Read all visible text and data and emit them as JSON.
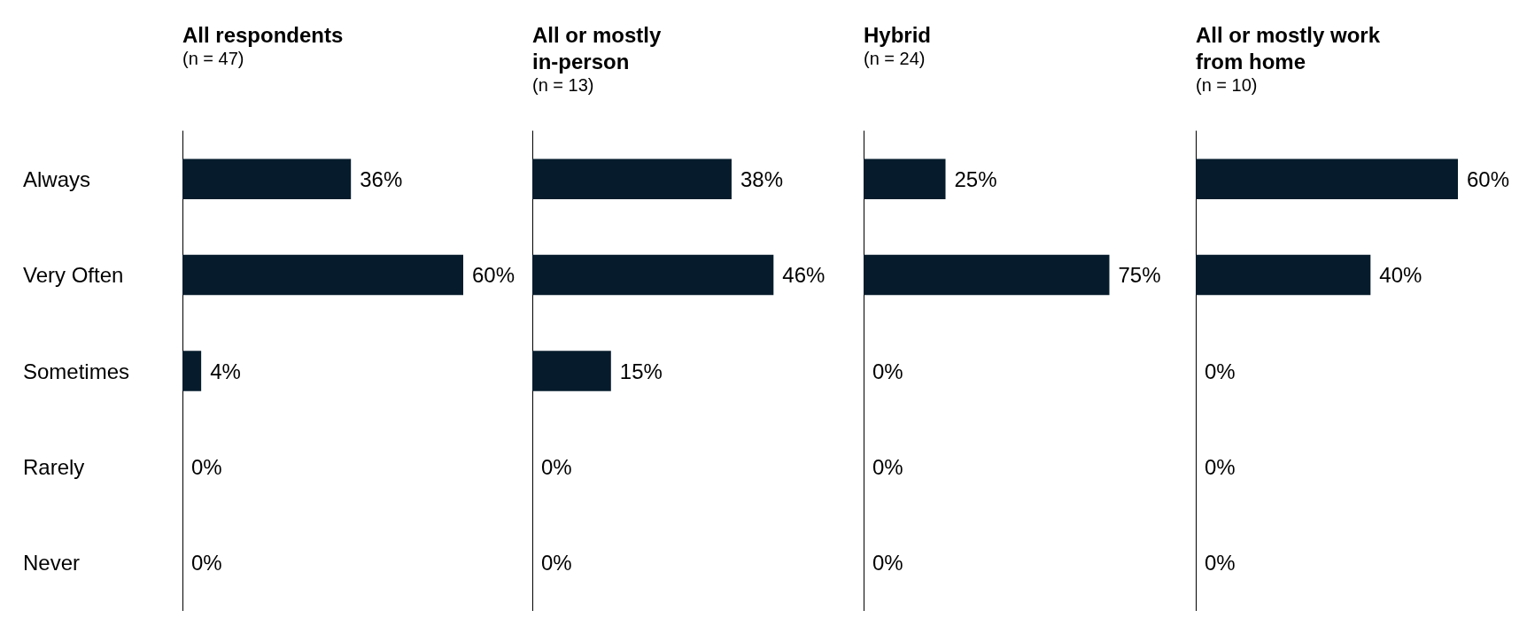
{
  "chart_data": [
    {
      "type": "bar",
      "orientation": "horizontal",
      "title": "All respondents",
      "subtitle": "(n = 47)",
      "categories": [
        "Always",
        "Very Often",
        "Sometimes",
        "Rarely",
        "Never"
      ],
      "series": [
        {
          "color": "#061c2c",
          "values": [
            36,
            60,
            4,
            0,
            0
          ],
          "value_labels": [
            "36%",
            "60%",
            "4%",
            "0%",
            "0%"
          ]
        }
      ],
      "tick_labels": "y"
    },
    {
      "type": "bar",
      "orientation": "horizontal",
      "title": "All or mostly in-person",
      "subtitle": "(n = 13)",
      "categories": [
        null,
        null,
        null,
        null,
        null
      ],
      "series": [
        {
          "color": "#061c2c",
          "values": [
            38,
            46,
            15,
            0,
            0
          ],
          "value_labels": [
            "38%",
            "46%",
            "15%",
            "0%",
            "0%"
          ]
        }
      ],
      "tick_labels": false
    },
    {
      "type": "bar",
      "orientation": "horizontal",
      "title": "Hybrid",
      "subtitle": "(n = 24)",
      "categories": [
        null,
        null,
        null,
        null,
        null
      ],
      "series": [
        {
          "color": "#061c2c",
          "values": [
            25,
            75,
            0,
            0,
            0
          ],
          "value_labels": [
            "25%",
            "75%",
            "0%",
            "0%",
            "0%"
          ]
        }
      ],
      "tick_labels": false
    },
    {
      "type": "bar",
      "orientation": "horizontal",
      "title": "All or mostly work from home",
      "subtitle": "(n = 10)",
      "categories": [
        null,
        null,
        null,
        null,
        null
      ],
      "series": [
        {
          "color": "#061c2c",
          "values": [
            60,
            40,
            0,
            0,
            0
          ],
          "value_labels": [
            "60%",
            "40%",
            "0%",
            "0%",
            "0%"
          ]
        }
      ],
      "tick_labels": false
    }
  ]
}
